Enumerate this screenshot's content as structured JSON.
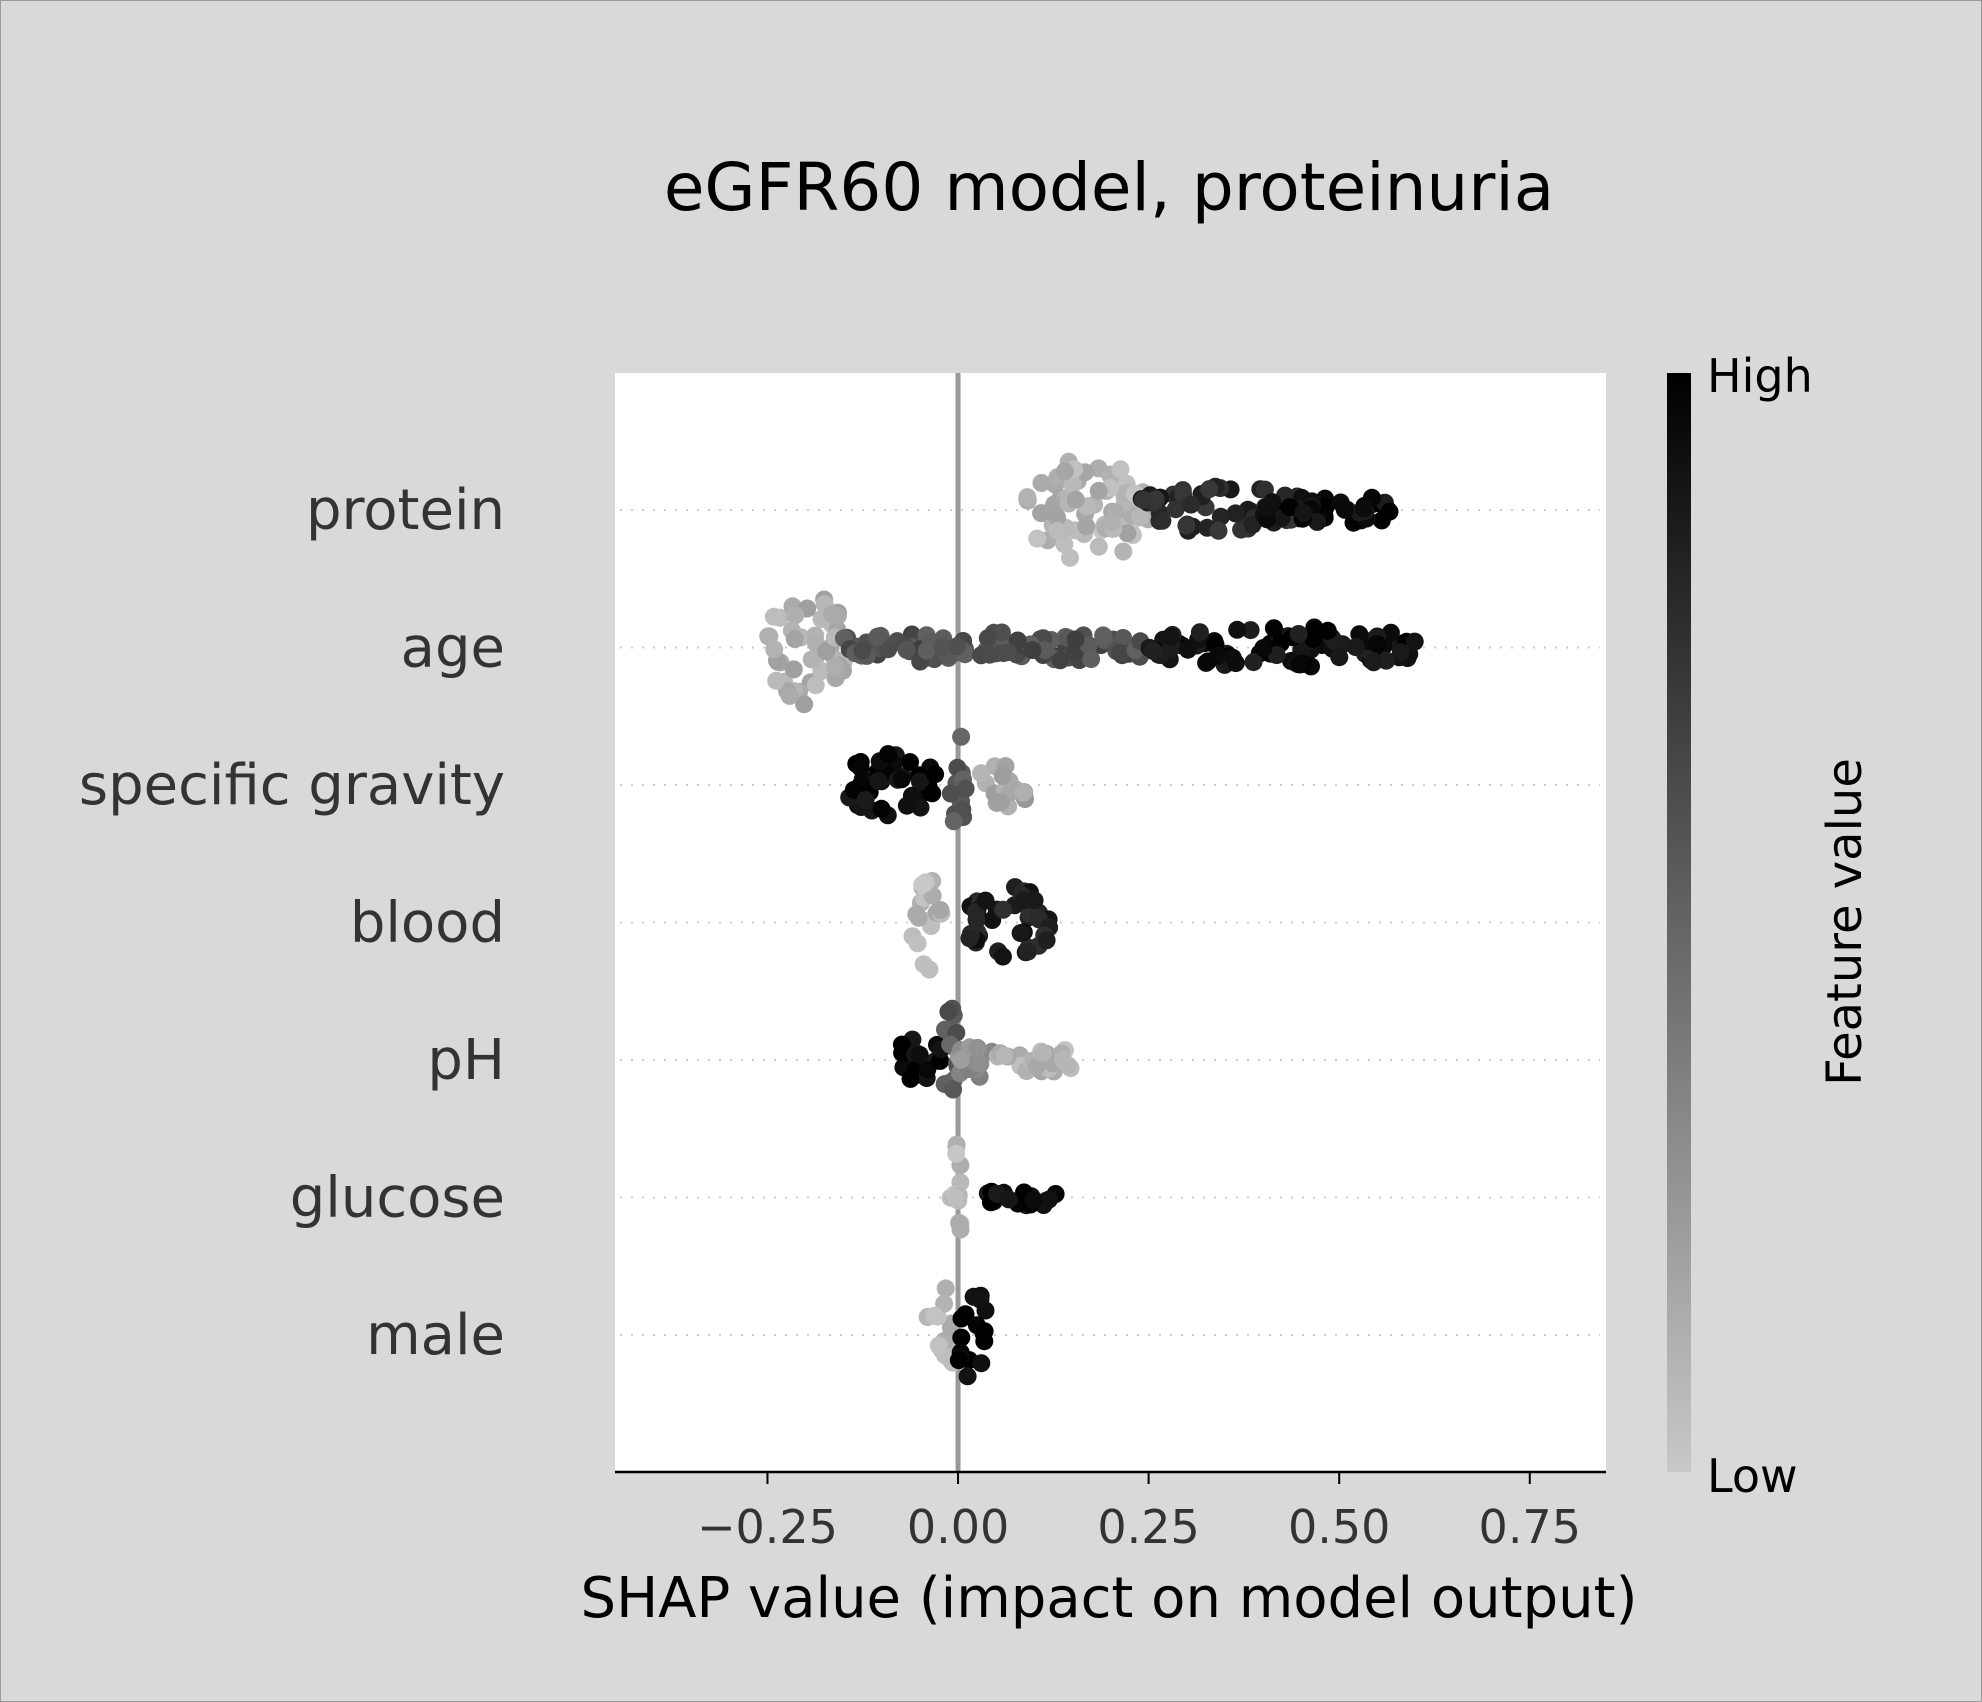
{
  "chart_data": {
    "type": "scatter",
    "subtype": "shap-beeswarm",
    "title": "eGFR60 model, proteinuria",
    "xlabel": "SHAP value (impact on model output)",
    "ylabel": "",
    "xlim": [
      -0.45,
      0.85
    ],
    "xticks": [
      -0.25,
      0.0,
      0.25,
      0.5,
      0.75
    ],
    "xtick_labels": [
      "−0.25",
      "0.00",
      "0.25",
      "0.50",
      "0.75"
    ],
    "grid": false,
    "features": [
      {
        "name": "protein",
        "clusters": [
          {
            "from": 0.09,
            "to": 0.25,
            "color": 0.1,
            "spread": 0.8
          },
          {
            "from": 0.24,
            "to": 0.45,
            "color": 0.8,
            "spread": 0.35
          },
          {
            "from": 0.4,
            "to": 0.57,
            "color": 0.95,
            "spread": 0.2
          }
        ]
      },
      {
        "name": "age",
        "clusters": [
          {
            "from": -0.25,
            "to": -0.15,
            "color": 0.12,
            "spread": 0.9
          },
          {
            "from": -0.15,
            "to": 0.25,
            "color": 0.6,
            "spread": 0.2
          },
          {
            "from": 0.25,
            "to": 0.61,
            "color": 0.92,
            "spread": 0.28
          }
        ]
      },
      {
        "name": "specific gravity",
        "clusters": [
          {
            "from": -0.15,
            "to": -0.03,
            "color": 0.95,
            "spread": 0.45
          },
          {
            "from": -0.01,
            "to": 0.01,
            "color": 0.55,
            "spread": 0.85
          },
          {
            "from": 0.03,
            "to": 0.1,
            "color": 0.15,
            "spread": 0.3
          }
        ]
      },
      {
        "name": "blood",
        "clusters": [
          {
            "from": -0.06,
            "to": -0.02,
            "color": 0.08,
            "spread": 0.8
          },
          {
            "from": 0.01,
            "to": 0.12,
            "color": 0.85,
            "spread": 0.55
          }
        ]
      },
      {
        "name": "pH",
        "clusters": [
          {
            "from": -0.08,
            "to": -0.02,
            "color": 0.95,
            "spread": 0.3
          },
          {
            "from": -0.02,
            "to": 0.0,
            "color": 0.55,
            "spread": 0.85
          },
          {
            "from": 0.0,
            "to": 0.05,
            "color": 0.3,
            "spread": 0.3
          },
          {
            "from": 0.05,
            "to": 0.155,
            "color": 0.1,
            "spread": 0.15
          }
        ]
      },
      {
        "name": "glucose",
        "clusters": [
          {
            "from": -0.01,
            "to": 0.005,
            "color": 0.08,
            "spread": 0.85
          },
          {
            "from": 0.035,
            "to": 0.13,
            "color": 0.95,
            "spread": 0.08
          }
        ]
      },
      {
        "name": "male",
        "clusters": [
          {
            "from": -0.04,
            "to": 0.0,
            "color": 0.1,
            "spread": 0.75
          },
          {
            "from": 0.0,
            "to": 0.04,
            "color": 0.98,
            "spread": 0.75
          }
        ]
      }
    ],
    "colorbar": {
      "label": "Feature value",
      "high_label": "High",
      "low_label": "Low",
      "high_color": "#000000",
      "low_color": "#c8c8c8"
    }
  }
}
